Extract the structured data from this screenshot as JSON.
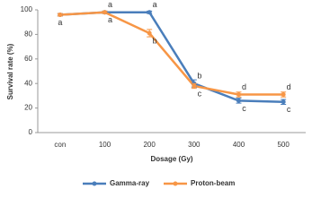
{
  "chart_data": {
    "type": "line",
    "y_label": "Survival rate (%)",
    "x_label": "Dosage (Gy)",
    "categories": [
      "con",
      "100",
      "200",
      "300",
      "400",
      "500"
    ],
    "series": [
      {
        "name": "Gamma-ray",
        "color": "#4a7ebb",
        "values": [
          96,
          98,
          98,
          40,
          26,
          25
        ],
        "errors": [
          1,
          1,
          1,
          3,
          2,
          2
        ],
        "letters": [
          null,
          "a",
          "a",
          "b",
          "c",
          "c"
        ]
      },
      {
        "name": "Proton-beam",
        "color": "#f79646",
        "values": [
          96,
          98,
          81,
          38,
          31,
          31
        ],
        "errors": [
          1,
          1,
          3,
          2,
          2,
          2
        ],
        "letters": [
          "a",
          "a",
          "b",
          "c",
          "d",
          "d"
        ]
      }
    ],
    "ylim": [
      0,
      100
    ],
    "yticks": [
      0,
      20,
      40,
      60,
      80,
      100
    ],
    "legend": "bottom"
  }
}
